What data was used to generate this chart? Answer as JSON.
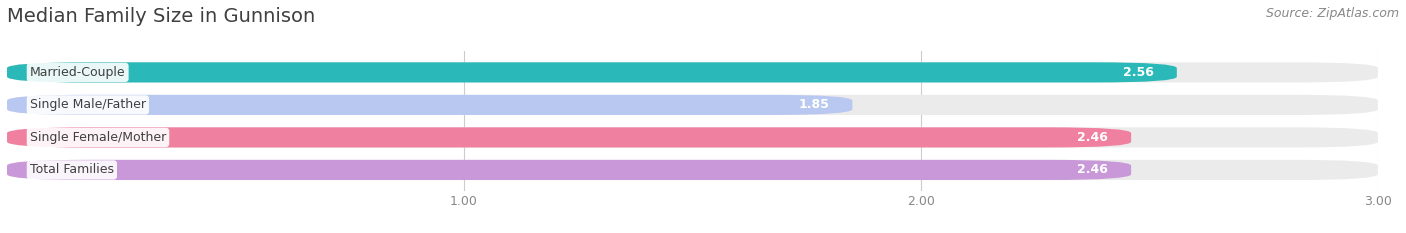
{
  "title": "Median Family Size in Gunnison",
  "source": "Source: ZipAtlas.com",
  "categories": [
    "Married-Couple",
    "Single Male/Father",
    "Single Female/Mother",
    "Total Families"
  ],
  "values": [
    2.56,
    1.85,
    2.46,
    2.46
  ],
  "bar_colors": [
    "#2ab8b8",
    "#b8c8f0",
    "#f080a0",
    "#c898d8"
  ],
  "bar_bg_color": "#ebebeb",
  "xlim": [
    0,
    3.0
  ],
  "xticks": [
    1.0,
    2.0,
    3.0
  ],
  "xtick_labels": [
    "1.00",
    "2.00",
    "3.00"
  ],
  "title_fontsize": 14,
  "source_fontsize": 9,
  "label_fontsize": 9,
  "value_fontsize": 9,
  "bar_height": 0.62,
  "background_color": "#ffffff",
  "rounding_size": 0.18
}
